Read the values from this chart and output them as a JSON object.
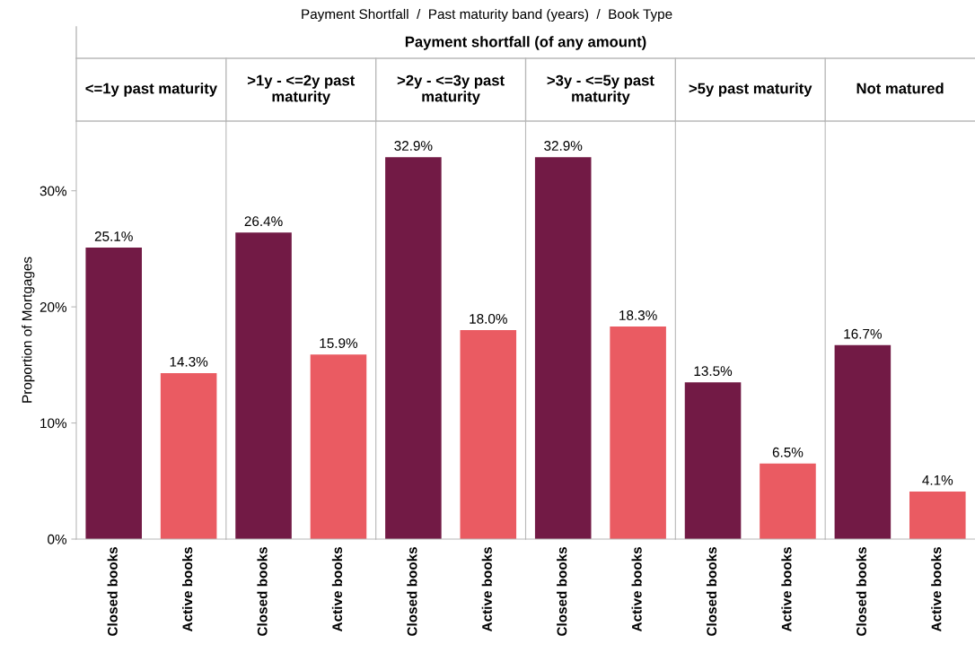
{
  "chart_data": [
    {
      "type": "bar",
      "title": "<=1y past maturity",
      "ylabel": "Proportion of Mortgages",
      "annotations": [
        "Payment Shortfall  /  Past maturity band (years)  /  Book Type",
        "Payment shortfall (of any amount)"
      ],
      "categories": [
        "Closed books",
        "Active books"
      ],
      "values": [
        25.1,
        14.3
      ],
      "colors": [
        "#721a45",
        "#ea5b62"
      ],
      "value_labels": [
        "25.1%",
        "14.3%"
      ],
      "ylim": [
        0,
        36
      ],
      "yticks": [
        {
          "value": 0,
          "label": "0%"
        },
        {
          "value": 10,
          "label": "10%"
        },
        {
          "value": 20,
          "label": "20%"
        },
        {
          "value": 30,
          "label": "30%"
        }
      ]
    },
    {
      "type": "bar",
      "title": ">1y - <=2y past maturity",
      "categories": [
        "Closed books",
        "Active books"
      ],
      "values": [
        26.4,
        15.9
      ],
      "colors": [
        "#721a45",
        "#ea5b62"
      ],
      "value_labels": [
        "26.4%",
        "15.9%"
      ],
      "ylim": [
        0,
        36
      ],
      "tick_labels": "x"
    },
    {
      "type": "bar",
      "title": ">2y - <=3y past maturity",
      "categories": [
        "Closed books",
        "Active books"
      ],
      "values": [
        32.9,
        18.0
      ],
      "colors": [
        "#721a45",
        "#ea5b62"
      ],
      "value_labels": [
        "32.9%",
        "18.0%"
      ],
      "ylim": [
        0,
        36
      ],
      "tick_labels": "x"
    },
    {
      "type": "bar",
      "title": ">3y - <=5y past maturity",
      "categories": [
        "Closed books",
        "Active books"
      ],
      "values": [
        32.9,
        18.3
      ],
      "colors": [
        "#721a45",
        "#ea5b62"
      ],
      "value_labels": [
        "32.9%",
        "18.3%"
      ],
      "ylim": [
        0,
        36
      ],
      "tick_labels": "x"
    },
    {
      "type": "bar",
      "title": ">5y past maturity",
      "categories": [
        "Closed books",
        "Active books"
      ],
      "values": [
        13.5,
        6.5
      ],
      "colors": [
        "#721a45",
        "#ea5b62"
      ],
      "value_labels": [
        "13.5%",
        "6.5%"
      ],
      "ylim": [
        0,
        36
      ],
      "tick_labels": "x"
    },
    {
      "type": "bar",
      "title": "Not matured",
      "categories": [
        "Closed books",
        "Active books"
      ],
      "values": [
        16.7,
        4.1
      ],
      "colors": [
        "#721a45",
        "#ea5b62"
      ],
      "value_labels": [
        "16.7%",
        "4.1%"
      ],
      "ylim": [
        0,
        36
      ],
      "tick_labels": "x"
    }
  ]
}
